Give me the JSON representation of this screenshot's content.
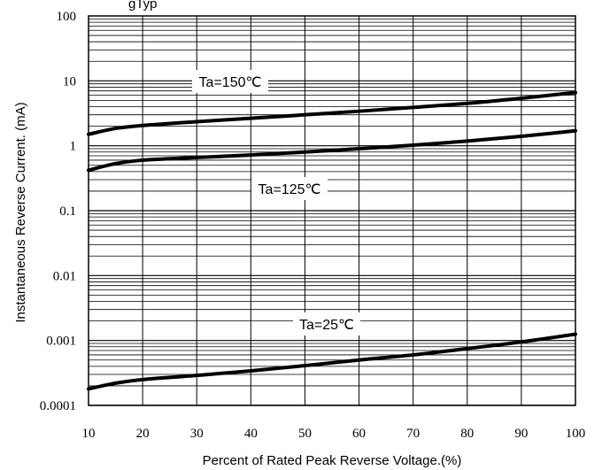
{
  "chart_data": {
    "type": "line",
    "title": "gTyp",
    "xlabel": "Percent of Rated Peak Reverse Voltage.(%)",
    "ylabel": "Instantaneous Reverse Current. (mA)",
    "x_scale": "linear",
    "y_scale": "log",
    "xlim": [
      10,
      100
    ],
    "ylim": [
      0.0001,
      100
    ],
    "grid": true,
    "x_ticks": [
      "10",
      "20",
      "30",
      "40",
      "50",
      "60",
      "70",
      "80",
      "90",
      "100"
    ],
    "y_ticks": [
      "0.0001",
      "0.001",
      "0.01",
      "0.1",
      "1",
      "10",
      "100"
    ],
    "x": [
      10,
      15,
      20,
      30,
      40,
      50,
      60,
      70,
      80,
      90,
      100
    ],
    "series": [
      {
        "name": "Ta=150℃",
        "values": [
          1.5,
          1.85,
          2.05,
          2.35,
          2.65,
          3.0,
          3.4,
          3.9,
          4.5,
          5.4,
          6.6
        ]
      },
      {
        "name": "Ta=125℃",
        "values": [
          0.42,
          0.53,
          0.6,
          0.66,
          0.72,
          0.8,
          0.9,
          1.02,
          1.18,
          1.4,
          1.7
        ]
      },
      {
        "name": "Ta=25℃",
        "values": [
          0.00018,
          0.00022,
          0.00025,
          0.00029,
          0.00034,
          0.00041,
          0.0005,
          0.0006,
          0.00075,
          0.00095,
          0.00125
        ]
      }
    ],
    "colors": {
      "line": "#000000",
      "grid": "#000000",
      "background": "#ffffff"
    }
  }
}
